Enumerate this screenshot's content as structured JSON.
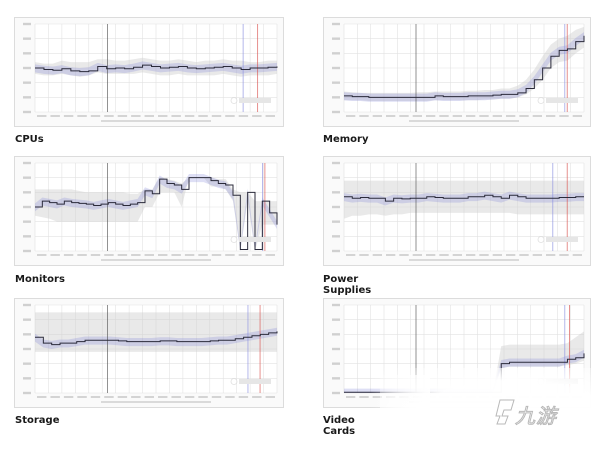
{
  "page": {
    "background": "#ffffff"
  },
  "cards": [
    {
      "title": "CPUs"
    },
    {
      "title": "Memory"
    },
    {
      "title": "Monitors"
    },
    {
      "title": "Power Supplies"
    },
    {
      "title": "Storage"
    },
    {
      "title": "Video Cards"
    }
  ],
  "watermark": {
    "text": "九游",
    "logo": "9game-logo-icon"
  },
  "colors": {
    "line": "#2a2a3a",
    "band_blue": "#7b7fd8",
    "band_gray": "#cfcfcf",
    "grid": "#e2e2e2",
    "marker_blue": "#8c90e0",
    "marker_red": "#d9534f",
    "marker_dark": "#555555"
  },
  "chart_data": [
    {
      "type": "line",
      "title": "CPUs",
      "xlabel": "",
      "ylabel": "Average Price",
      "y_ticks": 7,
      "x_count": 18,
      "ylim": [
        0,
        6
      ],
      "grid": true,
      "values": [
        3.0,
        2.9,
        2.85,
        2.95,
        2.8,
        2.75,
        2.8,
        3.1,
        2.95,
        3.0,
        2.95,
        3.05,
        3.2,
        3.1,
        3.0,
        3.05,
        3.1,
        3.0,
        2.95,
        3.0,
        3.05,
        3.1,
        3.0,
        2.9,
        3.0,
        3.0,
        3.05,
        3.1
      ],
      "band_upper": [
        3.4,
        3.3,
        3.3,
        3.5,
        3.4,
        3.4,
        3.4,
        3.6,
        3.6,
        3.5,
        3.5,
        3.6,
        3.7,
        3.6,
        3.5,
        3.5,
        3.6,
        3.5,
        3.4,
        3.5,
        3.5,
        3.6,
        3.5,
        3.5,
        3.4,
        3.4,
        3.5,
        3.5
      ],
      "band_lower": [
        2.6,
        2.5,
        2.5,
        2.6,
        2.5,
        2.4,
        2.5,
        2.7,
        2.6,
        2.6,
        2.6,
        2.6,
        2.7,
        2.6,
        2.5,
        2.5,
        2.6,
        2.5,
        2.5,
        2.5,
        2.5,
        2.6,
        2.5,
        2.4,
        2.5,
        2.5,
        2.5,
        2.6
      ],
      "markers": [
        0.3,
        0.86,
        0.92
      ]
    },
    {
      "type": "line",
      "title": "Memory",
      "xlabel": "",
      "ylabel": "Average Price",
      "y_ticks": 7,
      "x_count": 18,
      "ylim": [
        0,
        6
      ],
      "grid": true,
      "values": [
        1.1,
        1.05,
        1.05,
        1.0,
        1.0,
        1.0,
        1.0,
        1.0,
        1.0,
        1.0,
        1.0,
        1.1,
        1.05,
        1.05,
        1.05,
        1.1,
        1.1,
        1.1,
        1.15,
        1.2,
        1.2,
        1.3,
        1.6,
        2.2,
        3.0,
        3.8,
        4.2,
        4.3,
        4.8,
        5.2
      ],
      "band_upper": [
        1.4,
        1.35,
        1.3,
        1.3,
        1.3,
        1.3,
        1.3,
        1.3,
        1.3,
        1.35,
        1.35,
        1.4,
        1.4,
        1.4,
        1.4,
        1.45,
        1.45,
        1.5,
        1.5,
        1.6,
        1.6,
        1.8,
        2.2,
        2.9,
        3.8,
        4.6,
        5.0,
        5.2,
        5.6,
        5.8
      ],
      "band_lower": [
        0.8,
        0.8,
        0.8,
        0.75,
        0.75,
        0.75,
        0.75,
        0.75,
        0.75,
        0.75,
        0.75,
        0.8,
        0.8,
        0.8,
        0.8,
        0.8,
        0.8,
        0.85,
        0.85,
        0.9,
        0.9,
        1.0,
        1.2,
        1.6,
        2.2,
        3.0,
        3.4,
        3.5,
        4.0,
        4.4
      ],
      "markers": [
        0.3,
        0.92,
        0.93
      ]
    },
    {
      "type": "line",
      "title": "Monitors",
      "xlabel": "",
      "ylabel": "Average Price",
      "y_ticks": 7,
      "x_count": 18,
      "ylim": [
        0,
        6
      ],
      "grid": true,
      "values": [
        3.0,
        3.4,
        3.3,
        3.2,
        3.4,
        3.3,
        3.25,
        3.2,
        3.1,
        3.2,
        3.3,
        3.2,
        3.1,
        3.2,
        3.3,
        4.1,
        3.9,
        4.9,
        4.6,
        4.5,
        4.2,
        5.0,
        5.0,
        5.0,
        4.8,
        4.6,
        4.5,
        3.8,
        0.1,
        4.0,
        0.1,
        3.4,
        2.6,
        1.8
      ],
      "band_upper": [
        4.2,
        4.2,
        4.2,
        4.2,
        4.2,
        4.2,
        4.1,
        4.0,
        4.0,
        4.0,
        4.0,
        4.0,
        4.0,
        3.9,
        3.9,
        4.2,
        4.2,
        5.0,
        4.9,
        4.8,
        4.6,
        5.0,
        5.0,
        5.0,
        5.0,
        4.9,
        4.9,
        4.2,
        4.0,
        4.0,
        3.4,
        3.4,
        3.4,
        3.4
      ],
      "band_lower": [
        2.4,
        2.3,
        2.2,
        2.0,
        2.0,
        2.0,
        2.0,
        2.0,
        2.0,
        2.0,
        2.0,
        2.0,
        2.0,
        2.0,
        2.0,
        3.0,
        3.0,
        4.0,
        4.0,
        4.0,
        3.0,
        5.0,
        5.0,
        5.0,
        4.4,
        4.4,
        4.2,
        3.4,
        0.0,
        3.4,
        0.0,
        1.8,
        1.8,
        1.8
      ],
      "markers": [
        0.3,
        0.94,
        0.95
      ]
    },
    {
      "type": "line",
      "title": "Power Supplies",
      "xlabel": "",
      "ylabel": "Average Price",
      "y_ticks": 7,
      "x_count": 18,
      "ylim": [
        0,
        6
      ],
      "grid": true,
      "values": [
        3.7,
        3.6,
        3.65,
        3.6,
        3.6,
        3.4,
        3.6,
        3.55,
        3.6,
        3.6,
        3.7,
        3.65,
        3.6,
        3.6,
        3.6,
        3.7,
        3.7,
        3.8,
        3.7,
        3.6,
        3.8,
        3.7,
        3.6,
        3.6,
        3.6,
        3.6,
        3.65,
        3.65,
        3.7,
        3.7
      ],
      "band_upper": [
        4.8,
        4.8,
        4.8,
        4.8,
        4.8,
        4.8,
        4.8,
        4.8,
        4.8,
        4.8,
        4.8,
        4.8,
        4.8,
        4.8,
        4.8,
        4.8,
        4.8,
        4.8,
        4.8,
        4.8,
        4.8,
        4.8,
        4.8,
        4.8,
        4.8,
        4.8,
        4.8,
        4.8,
        4.8,
        4.8
      ],
      "band_lower": [
        2.2,
        2.4,
        2.4,
        2.5,
        2.5,
        2.4,
        2.5,
        2.5,
        2.6,
        2.6,
        2.6,
        2.6,
        2.6,
        2.6,
        2.6,
        2.6,
        2.6,
        2.6,
        2.6,
        2.6,
        2.6,
        2.5,
        2.5,
        2.5,
        2.5,
        2.5,
        2.5,
        2.5,
        2.5,
        2.5
      ],
      "markers": [
        0.3,
        0.87,
        0.93
      ]
    },
    {
      "type": "line",
      "title": "Storage",
      "xlabel": "",
      "ylabel": "Average Price",
      "y_ticks": 7,
      "x_count": 18,
      "ylim": [
        0,
        6
      ],
      "grid": true,
      "values": [
        3.8,
        3.4,
        3.3,
        3.4,
        3.4,
        3.5,
        3.6,
        3.6,
        3.6,
        3.6,
        3.55,
        3.5,
        3.5,
        3.5,
        3.5,
        3.55,
        3.55,
        3.5,
        3.5,
        3.5,
        3.5,
        3.55,
        3.6,
        3.6,
        3.7,
        3.8,
        3.9,
        4.0,
        4.1,
        4.2
      ],
      "band_upper": [
        5.5,
        5.5,
        5.5,
        5.5,
        5.5,
        5.5,
        5.5,
        5.5,
        5.5,
        5.5,
        5.5,
        5.5,
        5.5,
        5.5,
        5.5,
        5.5,
        5.5,
        5.5,
        5.5,
        5.5,
        5.5,
        5.5,
        5.5,
        5.5,
        5.5,
        5.5,
        5.5,
        5.5,
        5.5,
        5.5
      ],
      "band_lower": [
        2.8,
        2.8,
        2.8,
        2.8,
        2.8,
        2.8,
        2.8,
        2.8,
        2.8,
        2.8,
        2.8,
        2.8,
        2.8,
        2.8,
        2.8,
        2.8,
        2.8,
        2.8,
        2.8,
        2.8,
        2.8,
        2.8,
        2.8,
        2.8,
        2.8,
        2.8,
        2.8,
        2.8,
        2.8,
        2.8
      ],
      "markers": [
        0.3,
        0.88,
        0.93
      ]
    },
    {
      "type": "line",
      "title": "Video Cards",
      "xlabel": "",
      "ylabel": "Average Price",
      "y_ticks": 7,
      "x_count": 18,
      "ylim": [
        0,
        6
      ],
      "grid": true,
      "values": [
        0.05,
        0.05,
        0.05,
        0.05,
        0.05,
        0.05,
        0.05,
        0.05,
        0.05,
        0.05,
        0.05,
        0.05,
        0.05,
        0.05,
        0.05,
        0.05,
        0.05,
        0.05,
        0.05,
        2.0,
        2.1,
        2.1,
        2.1,
        2.1,
        2.1,
        2.1,
        2.1,
        2.3,
        2.4,
        2.7
      ],
      "band_upper": [
        0.05,
        0.05,
        0.05,
        0.05,
        0.05,
        0.05,
        0.05,
        0.05,
        0.05,
        0.05,
        0.05,
        0.05,
        0.05,
        0.05,
        0.05,
        0.05,
        0.05,
        0.05,
        0.05,
        3.2,
        3.3,
        3.3,
        3.3,
        3.3,
        3.3,
        3.3,
        3.3,
        3.4,
        3.8,
        4.2
      ],
      "band_lower": [
        0.05,
        0.05,
        0.05,
        0.05,
        0.05,
        0.05,
        0.05,
        0.05,
        0.05,
        0.05,
        0.05,
        0.05,
        0.05,
        0.05,
        0.05,
        0.05,
        0.05,
        0.05,
        0.05,
        1.7,
        1.8,
        1.8,
        1.8,
        1.8,
        1.8,
        1.8,
        1.8,
        1.9,
        2.0,
        2.2
      ],
      "markers": [
        0.3,
        0.92,
        0.94
      ]
    }
  ]
}
